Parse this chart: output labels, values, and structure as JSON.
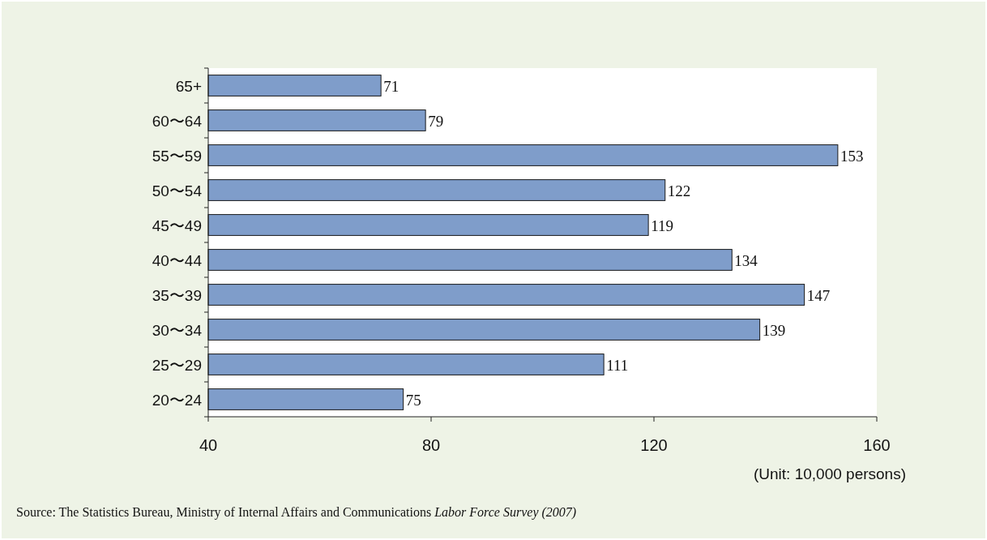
{
  "chart_data": {
    "type": "bar",
    "orientation": "horizontal",
    "categories": [
      "65+",
      "60〜64",
      "55〜59",
      "50〜54",
      "45〜49",
      "40〜44",
      "35〜39",
      "30〜34",
      "25〜29",
      "20〜24"
    ],
    "values": [
      71,
      79,
      153,
      122,
      119,
      134,
      147,
      139,
      111,
      75
    ],
    "color": "#7f9dca",
    "xlim": [
      40,
      160
    ],
    "xticks": [
      40,
      80,
      120,
      160
    ],
    "data_labels": true,
    "annotations": [
      "(Unit: 10,000 persons)",
      "Source: The Statistics Bureau, Ministry of Internal Affairs and Communications *Labor Force Survey (2007)*"
    ]
  }
}
